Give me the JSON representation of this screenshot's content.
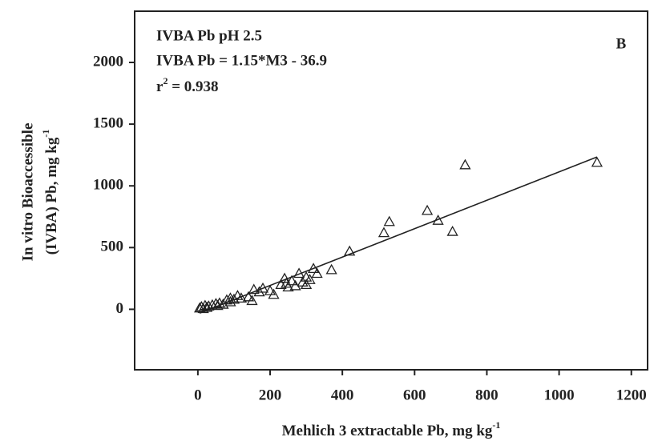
{
  "chart_data": {
    "type": "scatter",
    "annotations": [
      {
        "text": "IVBA Pb pH 2.5"
      },
      {
        "text": "IVBA Pb = 1.15*M3 - 36.9"
      },
      {
        "base": "r",
        "sup": "2",
        "rest": " = 0.938"
      }
    ],
    "panel_label": "B",
    "x_label": {
      "text": "Mehlich 3 extractable Pb, mg kg",
      "sup": "-1"
    },
    "y_label": {
      "line1": "In vitro Bioaccessible",
      "line2": "(IVBA) Pb, mg kg",
      "sup": "-1"
    },
    "x": [
      5,
      10,
      15,
      20,
      25,
      30,
      40,
      50,
      55,
      60,
      70,
      80,
      90,
      90,
      100,
      110,
      120,
      140,
      150,
      155,
      170,
      180,
      200,
      210,
      230,
      240,
      245,
      250,
      260,
      270,
      280,
      290,
      300,
      300,
      310,
      320,
      330,
      370,
      420,
      515,
      530,
      635,
      665,
      705,
      740,
      1105
    ],
    "values": [
      10,
      20,
      5,
      30,
      15,
      25,
      35,
      45,
      30,
      50,
      40,
      75,
      60,
      90,
      80,
      110,
      90,
      100,
      70,
      160,
      140,
      170,
      150,
      120,
      200,
      250,
      210,
      180,
      230,
      190,
      290,
      220,
      260,
      200,
      240,
      330,
      290,
      320,
      470,
      620,
      710,
      800,
      720,
      630,
      1170,
      1190
    ],
    "marker_color": "#222222",
    "fit": {
      "slope": 1.15,
      "intercept": -36.9,
      "xrange": [
        5,
        1105
      ]
    },
    "xlim": [
      -175,
      1245
    ],
    "ylim": [
      -490,
      2415
    ],
    "xticks": [
      0,
      200,
      400,
      600,
      800,
      1000,
      1200
    ],
    "yticks": [
      0,
      500,
      1000,
      1500,
      2000
    ],
    "grid": false
  }
}
